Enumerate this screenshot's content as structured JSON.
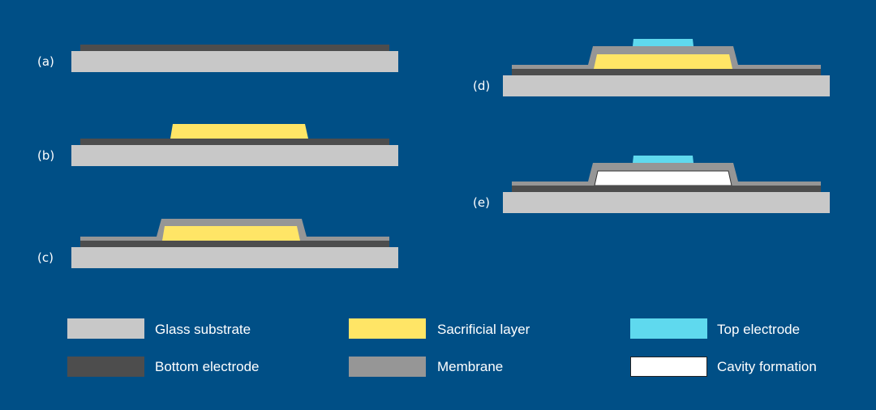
{
  "colors": {
    "background": "#004f86",
    "glass_substrate": "#c8c8c8",
    "bottom_electrode": "#4d4d4d",
    "sacrificial_layer": "#ffe566",
    "membrane": "#969696",
    "top_electrode": "#5fd9ee",
    "cavity": "#ffffff"
  },
  "steps": [
    {
      "label": "(a)"
    },
    {
      "label": "(b)"
    },
    {
      "label": "(c)"
    },
    {
      "label": "(d)"
    },
    {
      "label": "(e)"
    }
  ],
  "legend": [
    {
      "label": "Glass substrate"
    },
    {
      "label": "Bottom electrode"
    },
    {
      "label": "Sacrificial layer"
    },
    {
      "label": "Membrane"
    },
    {
      "label": "Top electrode"
    },
    {
      "label": "Cavity formation"
    }
  ]
}
